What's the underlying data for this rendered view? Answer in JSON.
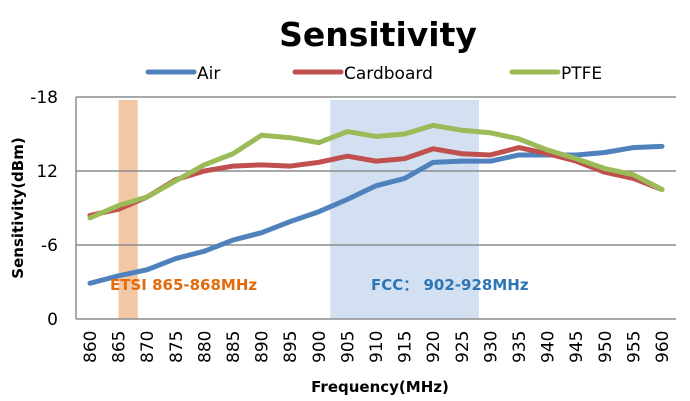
{
  "chart_data": {
    "type": "line",
    "title": "Sensitivity",
    "xlabel": "Frequency(MHz)",
    "ylabel": "Sensitivity(dBm)",
    "x": [
      860,
      865,
      870,
      875,
      880,
      885,
      890,
      895,
      900,
      905,
      910,
      915,
      920,
      925,
      930,
      935,
      940,
      945,
      950,
      955,
      960
    ],
    "ylim": [
      0,
      -18
    ],
    "y_ticks": [
      "0",
      "-6",
      "12",
      "-18"
    ],
    "y_tick_values": [
      0,
      6,
      12,
      18
    ],
    "grid": true,
    "legend_position": "top",
    "series": [
      {
        "name": "Air",
        "color": "#4f81bd",
        "values": [
          2.9,
          3.5,
          4.0,
          4.9,
          5.5,
          6.4,
          7.0,
          7.9,
          8.7,
          9.7,
          10.8,
          11.4,
          12.7,
          12.8,
          12.8,
          13.3,
          13.3,
          13.3,
          13.5,
          13.9,
          14.0
        ]
      },
      {
        "name": "Cardboard",
        "color": "#c0504d",
        "values": [
          8.4,
          8.9,
          9.9,
          11.3,
          12.0,
          12.4,
          12.5,
          12.4,
          12.7,
          13.2,
          12.8,
          13.0,
          13.8,
          13.4,
          13.3,
          13.9,
          13.4,
          12.8,
          11.9,
          11.4,
          10.5
        ]
      },
      {
        "name": "PTFE",
        "color": "#9bbb59",
        "values": [
          8.2,
          9.2,
          9.9,
          11.2,
          12.5,
          13.4,
          14.9,
          14.7,
          14.3,
          15.2,
          14.8,
          15.0,
          15.7,
          15.3,
          15.1,
          14.6,
          13.7,
          13.0,
          12.2,
          11.7,
          10.5
        ]
      }
    ],
    "bands": [
      {
        "label": "ETSI 865-868MHz",
        "from": 865,
        "to": 868,
        "color": "#f2c09a",
        "text_color": "#e36c0a"
      },
      {
        "label": "FCC： 902-928MHz",
        "from": 902,
        "to": 928,
        "color": "#d1def0",
        "text_color": "#2e75b6"
      }
    ]
  }
}
